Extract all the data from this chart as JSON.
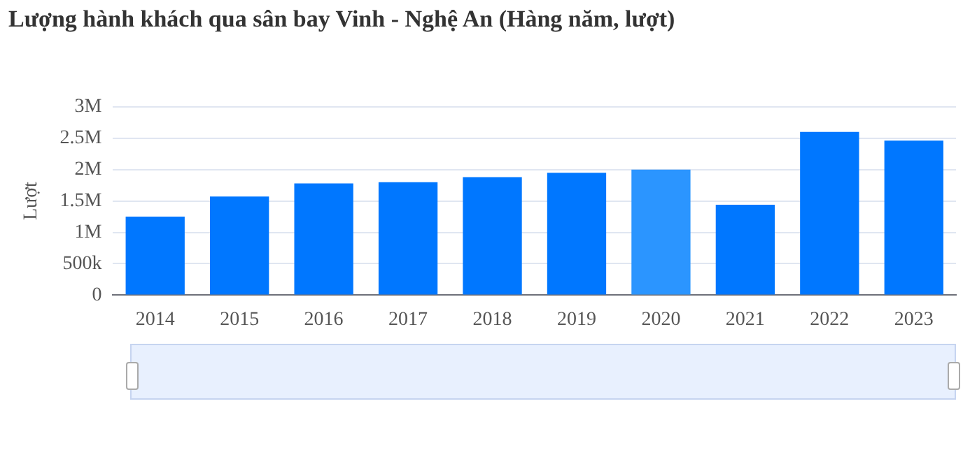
{
  "chart_data": {
    "type": "bar",
    "title": "Lượng hành khách qua sân bay Vinh - Nghệ An (Hàng năm, lượt)",
    "ylabel": "Lượt",
    "categories": [
      "2014",
      "2015",
      "2016",
      "2017",
      "2018",
      "2019",
      "2020",
      "2021",
      "2022",
      "2023"
    ],
    "values": [
      1250000,
      1570000,
      1780000,
      1800000,
      1880000,
      1950000,
      2000000,
      1440000,
      2600000,
      2460000
    ],
    "colors": [
      "#0077ff",
      "#0077ff",
      "#0077ff",
      "#0077ff",
      "#0077ff",
      "#0077ff",
      "#2b95ff",
      "#0077ff",
      "#0077ff",
      "#0077ff"
    ],
    "ylim": [
      0,
      3000000
    ],
    "yticks": [
      0,
      {
        "value": 500000,
        "label": "500k"
      },
      {
        "value": 1000000,
        "label": "1M"
      },
      {
        "value": 1500000,
        "label": "1.5M"
      },
      {
        "value": 2000000,
        "label": "2M"
      },
      {
        "value": 2500000,
        "label": "2.5M"
      },
      {
        "value": 3000000,
        "label": "3M"
      }
    ],
    "grid": "y",
    "legend": false
  }
}
